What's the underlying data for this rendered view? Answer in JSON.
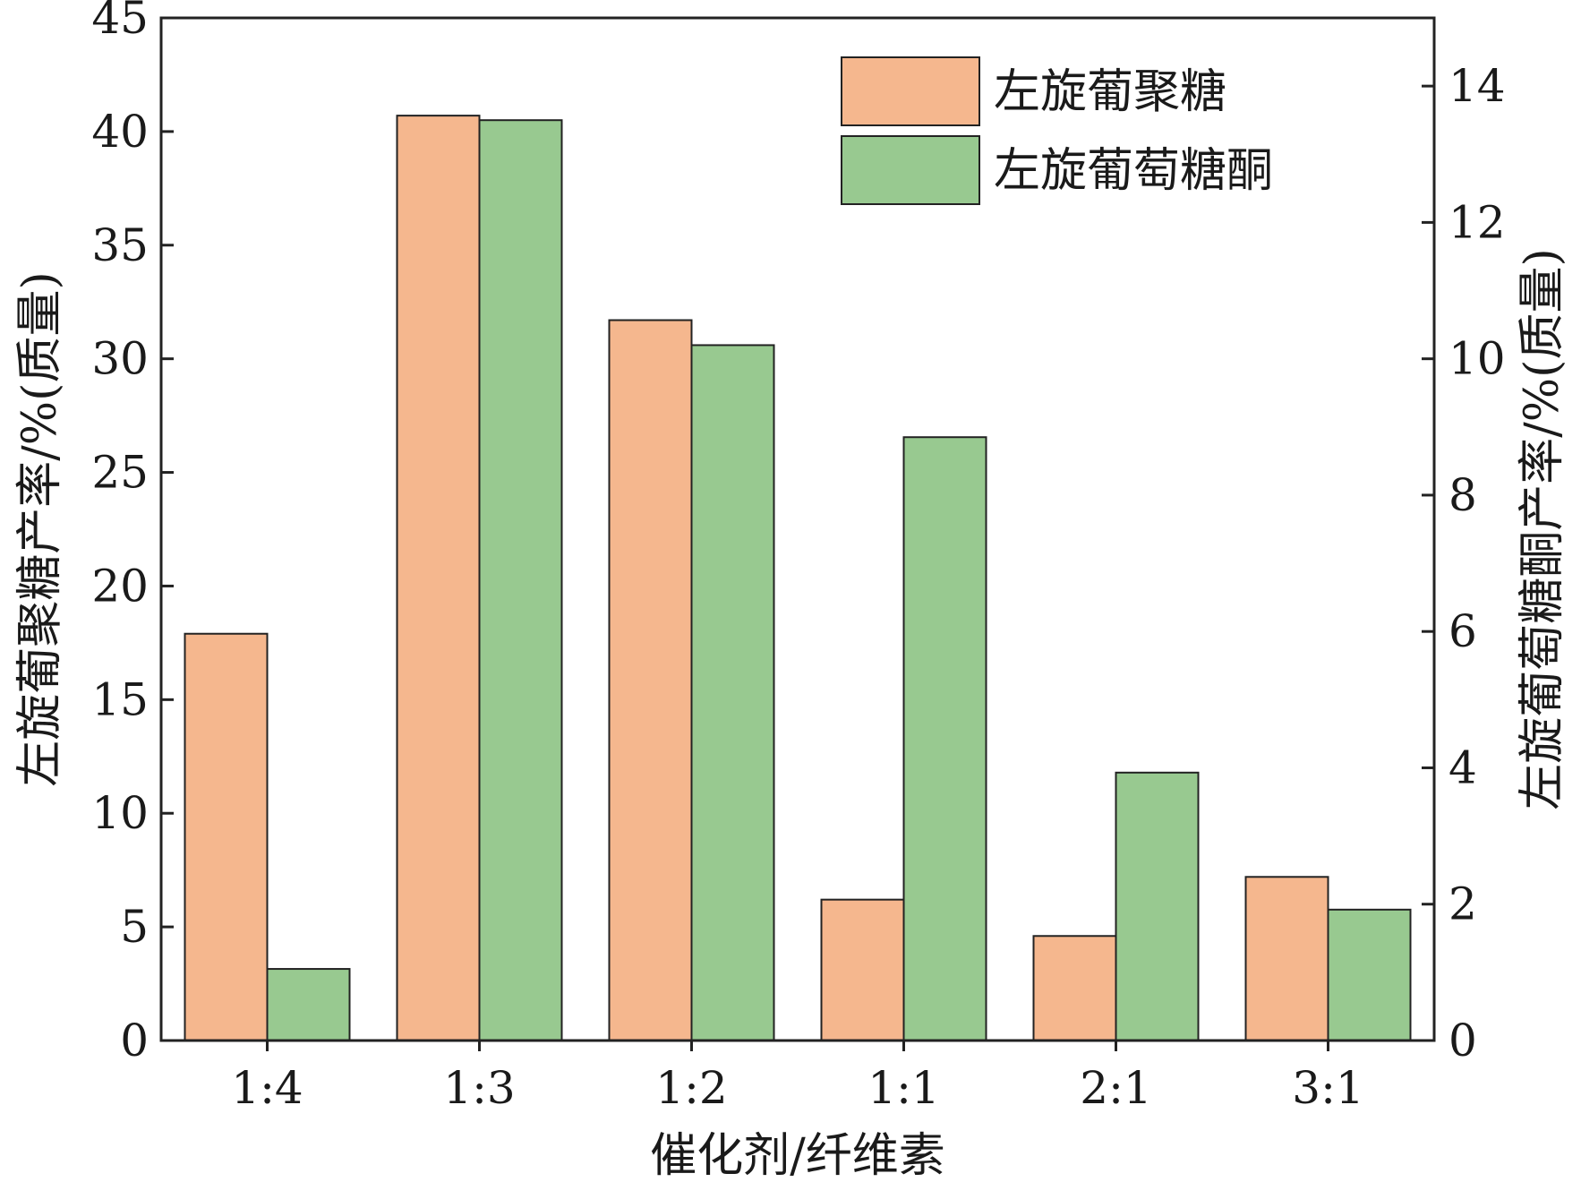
{
  "chart_data": {
    "type": "bar",
    "title": "",
    "categories": [
      "1:4",
      "1:3",
      "1:2",
      "1:1",
      "2:1",
      "3:1"
    ],
    "xlabel": "催化剂/纤维素",
    "ylabel": "左旋葡聚糖产率/%(质量)",
    "y2label": "左旋葡萄糖酮产率/%(质量)",
    "ylim": [
      0,
      45
    ],
    "y2lim": [
      0,
      15
    ],
    "yticks": [
      0,
      5,
      10,
      15,
      20,
      25,
      30,
      35,
      40,
      45
    ],
    "y2ticks": [
      0,
      2,
      4,
      6,
      8,
      10,
      12,
      14
    ],
    "legend_position": "top-right",
    "grid": false,
    "series": [
      {
        "name": "左旋葡聚糖",
        "axis": "left",
        "color": "#F5B78E",
        "values": [
          17.9,
          40.7,
          31.7,
          6.2,
          4.6,
          7.2
        ]
      },
      {
        "name": "左旋葡萄糖酮",
        "axis": "right",
        "color": "#98C990",
        "values": [
          1.05,
          13.5,
          10.2,
          8.85,
          3.93,
          1.92
        ]
      }
    ]
  }
}
